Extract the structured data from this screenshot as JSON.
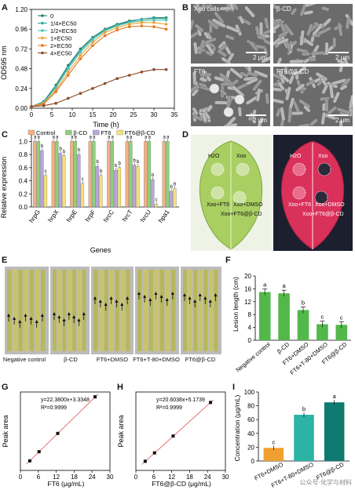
{
  "panels": {
    "A": "A",
    "B": "B",
    "C": "C",
    "D": "D",
    "E": "E",
    "F": "F",
    "G": "G",
    "H": "H",
    "I": "I"
  },
  "panelA": {
    "ylabel": "OD595 nm",
    "xlabel": "Time (h)",
    "xticks": [
      "0",
      "5",
      "10",
      "15",
      "20",
      "25",
      "30",
      "35"
    ],
    "yticks": [
      "0.00",
      "0.24",
      "0.48",
      "0.72",
      "0.96",
      "1.20"
    ],
    "legend": [
      "0",
      "1/4×EC50",
      "1/2×EC50",
      "1×EC50",
      "2×EC50",
      "4×EC50"
    ],
    "colors": [
      "#1f7f6f",
      "#3aa79a",
      "#4cc4b6",
      "#f0a030",
      "#e07820",
      "#8b4a2a"
    ]
  },
  "panelB": {
    "labels": [
      "Xoo cells",
      "β-CD",
      "FT6",
      "FT6@β-CD"
    ],
    "scale": "2 μm"
  },
  "panelC": {
    "ylabel": "Relative expression",
    "xlabel": "Genes",
    "legend": [
      "Control",
      "β-CD",
      "FT6",
      "FT6@β-CD"
    ],
    "colors": [
      "#f2b183",
      "#8fd07a",
      "#b9a6dc",
      "#f3e27a"
    ],
    "genes": [
      "hrpG",
      "hrpX",
      "hrpE",
      "hrpF",
      "hrcC",
      "hrcT",
      "hrcU",
      "hpa1"
    ],
    "yticks": [
      "0.0",
      "0.2",
      "0.4",
      "0.6",
      "0.8",
      "1.0"
    ]
  },
  "panelD": {
    "labels": [
      "H2O",
      "Xoo",
      "Xoo+FT6",
      "Xoo+DMSO",
      "Xoo+FT6@β-CD"
    ]
  },
  "panelE": {
    "labels": [
      "Negative control",
      "β-CD",
      "FT6+DMSO",
      "FT6+T-80+DMSO",
      "FT6@β-CD"
    ]
  },
  "panelF": {
    "ylabel": "Lesion length (cm)",
    "yticks": [
      "0",
      "4",
      "8",
      "12",
      "16",
      "20"
    ],
    "categories": [
      "Negative control",
      "β-CD",
      "FT6+DMSO",
      "FT6+T-80+DMSO",
      "FT6@β-CD"
    ],
    "sig": [
      "a",
      "a",
      "b",
      "c",
      "c"
    ]
  },
  "panelG": {
    "equation": "y=22.3800x+3.3348",
    "r2": "R²=0.9999",
    "xlabel": "FT6 (μg/mL)",
    "ylabel": "Peak area",
    "xticks": [
      "0",
      "6",
      "12",
      "18",
      "24",
      "30"
    ]
  },
  "panelH": {
    "equation": "y=20.6038x+5.1739",
    "r2": "R²=0.9999",
    "xlabel": "FT6@β-CD (μg/mL)",
    "ylabel": "Peak area",
    "xticks": [
      "0",
      "6",
      "12",
      "18",
      "24",
      "30"
    ]
  },
  "panelI": {
    "ylabel": "Concentration (μg/mL)",
    "yticks": [
      "0",
      "20",
      "40",
      "60",
      "80",
      "100"
    ],
    "categories": [
      "FT6+DMSO",
      "FT6+T-80+DMSO",
      "FT6@β-CD"
    ],
    "sig": [
      "c",
      "b",
      "a"
    ],
    "colors": [
      "#f0a030",
      "#2bb3a6",
      "#0f7a70"
    ]
  },
  "watermark": "公众号·化学与材料",
  "chart_data": [
    {
      "type": "line",
      "id": "A",
      "xlabel": "Time (h)",
      "ylabel": "OD595 nm",
      "xlim": [
        0,
        35
      ],
      "ylim": [
        0,
        1.2
      ],
      "x": [
        0,
        3,
        6,
        9,
        12,
        15,
        18,
        21,
        24,
        27,
        30,
        33
      ],
      "series": [
        {
          "name": "0",
          "values": [
            0.02,
            0.08,
            0.28,
            0.52,
            0.72,
            0.86,
            0.96,
            1.02,
            1.06,
            1.08,
            1.1,
            1.1
          ]
        },
        {
          "name": "1/4×EC50",
          "values": [
            0.02,
            0.07,
            0.26,
            0.5,
            0.7,
            0.85,
            0.95,
            1.01,
            1.05,
            1.08,
            1.09,
            1.09
          ]
        },
        {
          "name": "1/2×EC50",
          "values": [
            0.02,
            0.07,
            0.25,
            0.48,
            0.68,
            0.83,
            0.94,
            1.0,
            1.04,
            1.06,
            1.07,
            1.07
          ]
        },
        {
          "name": "1×EC50",
          "values": [
            0.02,
            0.06,
            0.22,
            0.44,
            0.64,
            0.8,
            0.92,
            0.98,
            1.02,
            1.04,
            1.04,
            1.02
          ]
        },
        {
          "name": "2×EC50",
          "values": [
            0.02,
            0.05,
            0.2,
            0.4,
            0.6,
            0.76,
            0.88,
            0.95,
            0.99,
            1.0,
            0.99,
            0.96
          ]
        },
        {
          "name": "4×EC50",
          "values": [
            0.02,
            0.03,
            0.06,
            0.12,
            0.18,
            0.24,
            0.3,
            0.36,
            0.4,
            0.44,
            0.47,
            0.47
          ]
        }
      ]
    },
    {
      "type": "bar",
      "id": "C",
      "xlabel": "Genes",
      "ylabel": "Relative expression",
      "ylim": [
        0,
        1.1
      ],
      "categories": [
        "hrpG",
        "hrpX",
        "hrpE",
        "hrpF",
        "hrcC",
        "hrcT",
        "hrcU",
        "hpa1"
      ],
      "series": [
        {
          "name": "Control",
          "values": [
            1,
            1,
            1,
            1,
            1,
            1,
            1,
            1
          ],
          "labels": [
            "a",
            "a",
            "a",
            "a",
            "a",
            "a",
            "a",
            "a"
          ]
        },
        {
          "name": "β-CD",
          "values": [
            1,
            1,
            1,
            1,
            1,
            1,
            1,
            1
          ],
          "labels": [
            "a",
            "a",
            "a",
            "a",
            "a",
            "a",
            "a",
            "a"
          ]
        },
        {
          "name": "FT6",
          "values": [
            0.86,
            0.82,
            0.8,
            0.62,
            0.56,
            0.64,
            0.42,
            0.24
          ],
          "labels": [
            "b",
            "b",
            "b",
            "b",
            "b",
            "b",
            "b",
            "b"
          ]
        },
        {
          "name": "FT6@β-CD",
          "values": [
            0.48,
            0.78,
            0.36,
            0.48,
            0.6,
            0.62,
            0.04,
            0.28
          ],
          "labels": [
            "c",
            "b",
            "c",
            "b",
            "b",
            "b",
            "c",
            "b"
          ]
        }
      ]
    },
    {
      "type": "bar",
      "id": "F",
      "ylabel": "Lesion length (cm)",
      "ylim": [
        0,
        20
      ],
      "categories": [
        "Negative control",
        "β-CD",
        "FT6+DMSO",
        "FT6+T-80+DMSO",
        "FT6@β-CD"
      ],
      "values": [
        15.0,
        14.6,
        9.4,
        5.0,
        4.8
      ],
      "labels": [
        "a",
        "a",
        "b",
        "c",
        "c"
      ]
    },
    {
      "type": "scatter",
      "id": "G",
      "xlabel": "FT6 (μg/mL)",
      "ylabel": "Peak area",
      "xlim": [
        0,
        30
      ],
      "x": [
        3.125,
        6.25,
        12.5,
        25
      ],
      "values": [
        73,
        143,
        283,
        563
      ]
    },
    {
      "type": "scatter",
      "id": "H",
      "xlabel": "FT6@β-CD (μg/mL)",
      "ylabel": "Peak area",
      "xlim": [
        0,
        30
      ],
      "x": [
        3.125,
        6.25,
        12.5,
        25
      ],
      "values": [
        70,
        134,
        263,
        520
      ]
    },
    {
      "type": "bar",
      "id": "I",
      "ylabel": "Concentration (μg/mL)",
      "ylim": [
        0,
        100
      ],
      "categories": [
        "FT6+DMSO",
        "FT6+T-80+DMSO",
        "FT6@β-CD"
      ],
      "values": [
        19,
        67,
        85
      ],
      "labels": [
        "c",
        "b",
        "a"
      ]
    }
  ]
}
